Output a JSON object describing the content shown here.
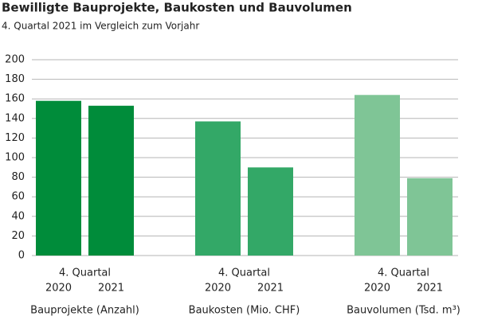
{
  "chart_data": {
    "type": "bar",
    "title": "Bewilligte Bauprojekte, Baukosten und Bauvolumen",
    "subtitle": "4. Quartal 2021 im Vergleich zum Vorjahr",
    "period_label": "4. Quartal",
    "categories": [
      "Bauprojekte (Anzahl)",
      "Baukosten (Mio. CHF)",
      "Bauvolumen (Tsd. m³)"
    ],
    "category_colors": [
      "#008c3a",
      "#33a867",
      "#7fc596"
    ],
    "series": [
      {
        "name": "2020",
        "values": [
          158,
          137,
          164
        ]
      },
      {
        "name": "2021",
        "values": [
          153,
          90,
          79
        ]
      }
    ],
    "ylim": [
      0,
      200
    ],
    "yticks": [
      0,
      20,
      40,
      60,
      80,
      100,
      120,
      140,
      160,
      180,
      200
    ],
    "grid": true
  }
}
